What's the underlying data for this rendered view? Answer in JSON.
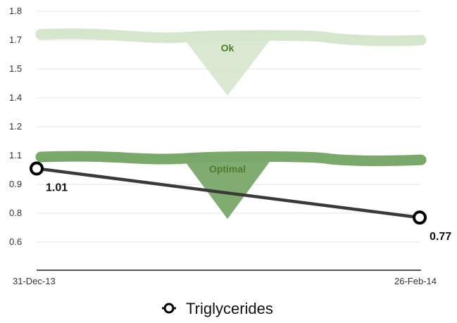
{
  "chart_data": {
    "type": "line",
    "x": [
      "31-Dec-13",
      "26-Feb-14"
    ],
    "y_ticks": [
      "1.8",
      "1.7",
      "1.5",
      "1.4",
      "1.2",
      "1.1",
      "0.9",
      "0.8",
      "0.6"
    ],
    "series": [
      {
        "name": "Triglycerides",
        "values": [
          1.01,
          0.77
        ],
        "point_labels": [
          "1.01",
          "0.77"
        ],
        "color": "#3a3a3a"
      }
    ],
    "reference_bands": [
      {
        "label": "Ok",
        "values": [
          1.72,
          1.7
        ],
        "color": "#d6e6cd"
      },
      {
        "label": "Optimal",
        "values": [
          1.09,
          1.07
        ],
        "color": "#79a86a"
      }
    ],
    "legend_position": "bottom",
    "grid": true
  }
}
